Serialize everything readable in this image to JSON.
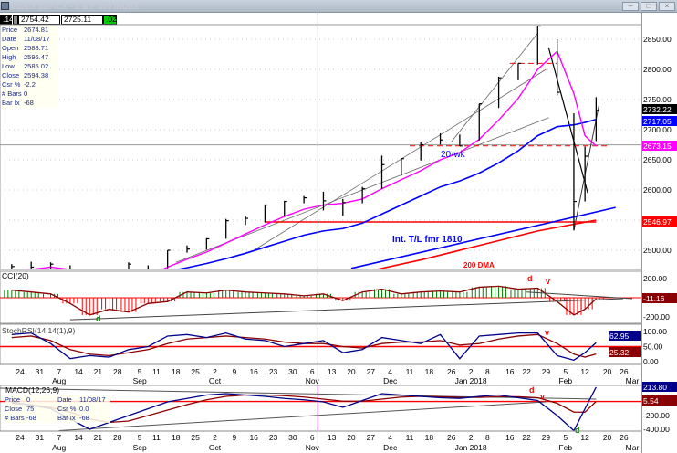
{
  "window": {
    "title": "INDEX $SPX.X - S & P 500 INDEX",
    "buttons": [
      "minimize",
      "maximize",
      "close"
    ]
  },
  "header_boxes": [
    ".14",
    "2754.42",
    "2725.11",
    ".02"
  ],
  "databox": [
    {
      "k": "Price",
      "v": "2674.81"
    },
    {
      "k": "Date",
      "v": "11/08/17"
    },
    {
      "k": "Open",
      "v": "2588.71"
    },
    {
      "k": "High",
      "v": "2596.47"
    },
    {
      "k": "Low",
      "v": "2585.02"
    },
    {
      "k": "Close",
      "v": "2594.38"
    },
    {
      "k": "Csr %",
      "v": "-2.2"
    },
    {
      "k": "# Bars",
      "v": "0"
    },
    {
      "k": "Bar Ix",
      "v": "-68"
    }
  ],
  "databox2": [
    {
      "k": "Price",
      "v": "0"
    },
    {
      "k": "Date",
      "v": "11/08/17"
    },
    {
      "k": "Close",
      "v": "75"
    },
    {
      "k": "Csr %",
      "v": "0.0"
    },
    {
      "k": "# Bars",
      "v": "-68"
    },
    {
      "k": "Bar Ix",
      "v": "-68"
    }
  ],
  "colors": {
    "price_bars": "#000000",
    "ma_pink": "#ff00ff",
    "ma_blue": "#0000ff",
    "dma200": "#ff0000",
    "hline": "#ff0000",
    "macd": "#00008b",
    "signal": "#8b0000",
    "cci_pos": "#008000",
    "cci_neg": "#ff0000"
  },
  "chart_data": [
    {
      "type": "bar",
      "title": "INDEX $SPX.X - S & P 500 INDEX",
      "yticks": [
        2500,
        2550,
        2600,
        2650,
        2700,
        2750,
        2800,
        2850
      ],
      "ytick_labels": [
        "2500.00",
        "",
        "2600.00",
        "2650.00",
        "2700.00",
        "2750.00",
        "2800.00",
        "2850.00"
      ],
      "ylim": [
        2468,
        2885
      ],
      "dates": [
        "2017-07-21",
        "2017-07-28",
        "2017-08-04",
        "2017-08-11",
        "2017-08-18",
        "2017-08-25",
        "2017-09-01",
        "2017-09-08",
        "2017-09-15",
        "2017-09-22",
        "2017-09-29",
        "2017-10-06",
        "2017-10-13",
        "2017-10-20",
        "2017-10-27",
        "2017-11-03",
        "2017-11-10",
        "2017-11-17",
        "2017-11-24",
        "2017-12-01",
        "2017-12-08",
        "2017-12-15",
        "2017-12-22",
        "2017-12-29",
        "2018-01-05",
        "2018-01-12",
        "2018-01-19",
        "2018-01-26",
        "2018-02-02",
        "2018-02-08",
        "2018-02-12",
        "2018-02-16"
      ],
      "high": [
        2477,
        2481,
        2480,
        2475,
        2450,
        2450,
        2480,
        2475,
        2500,
        2508,
        2520,
        2552,
        2557,
        2576,
        2582,
        2590,
        2597,
        2585,
        2605,
        2657,
        2652,
        2680,
        2694,
        2692,
        2743,
        2788,
        2810,
        2872,
        2850,
        2727,
        2672,
        2754
      ],
      "low": [
        2465,
        2465,
        2468,
        2437,
        2418,
        2425,
        2447,
        2446,
        2470,
        2496,
        2501,
        2519,
        2542,
        2546,
        2557,
        2578,
        2566,
        2557,
        2578,
        2602,
        2624,
        2649,
        2675,
        2673,
        2682,
        2736,
        2782,
        2808,
        2757,
        2533,
        2581,
        2681
      ],
      "close": [
        2473,
        2472,
        2477,
        2441,
        2425,
        2444,
        2477,
        2461,
        2500,
        2502,
        2519,
        2549,
        2553,
        2575,
        2581,
        2587,
        2582,
        2579,
        2602,
        2642,
        2652,
        2675,
        2683,
        2673,
        2743,
        2786,
        2810,
        2872,
        2762,
        2581,
        2656,
        2732
      ],
      "ma_pink": [
        2465,
        2468,
        2472,
        2468,
        2455,
        2448,
        2452,
        2458,
        2472,
        2485,
        2497,
        2512,
        2527,
        2542,
        2556,
        2568,
        2575,
        2578,
        2585,
        2602,
        2617,
        2632,
        2650,
        2662,
        2684,
        2716,
        2752,
        2800,
        2830,
        2760,
        2690,
        2673
      ],
      "ma_blue": [
        2440,
        2444,
        2447,
        2450,
        2451,
        2453,
        2456,
        2460,
        2465,
        2471,
        2478,
        2486,
        2495,
        2505,
        2515,
        2525,
        2532,
        2536,
        2545,
        2560,
        2575,
        2590,
        2605,
        2615,
        2628,
        2645,
        2665,
        2690,
        2705,
        2708,
        2712,
        2717
      ],
      "trendline": [
        {
          "date": "2017-11-20",
          "value": 2470
        },
        {
          "date": "2018-02-23",
          "value": 2571
        }
      ],
      "dma200": [
        {
          "date": "2017-11-24",
          "value": 2463
        },
        {
          "date": "2017-12-15",
          "value": 2484
        },
        {
          "date": "2018-01-05",
          "value": 2508
        },
        {
          "date": "2018-01-26",
          "value": 2532
        },
        {
          "date": "2018-02-16",
          "value": 2550
        }
      ],
      "hlines": [
        {
          "value": 2546.97,
          "from": "2017-10-20",
          "to": "2018-02-16"
        },
        {
          "value": 2673.15,
          "from": "2017-12-11",
          "to": "2018-02-20",
          "dashed": true
        },
        {
          "value": 2810,
          "from": "2018-01-16",
          "to": "2018-02-02",
          "dashed": true
        }
      ],
      "price_labels": [
        {
          "value": "2732.22",
          "bg": "#000000",
          "fg": "#ffffff",
          "level": 2732.22
        },
        {
          "value": "2717.05",
          "bg": "#0000ff",
          "fg": "#ffffff",
          "level": 2717.05
        },
        {
          "value": "2673.15",
          "bg": "#ff00ff",
          "fg": "#ffffff",
          "level": 2673.15
        },
        {
          "value": "2546.97",
          "bg": "#ff0000",
          "fg": "#ffffff",
          "level": 2546.97
        }
      ],
      "annotations": [
        {
          "text": "20-wk",
          "color": "#0000ff"
        },
        {
          "text": "Int. T/L fmr 1810",
          "color": "#0000ff"
        },
        {
          "text": "200 DMA",
          "color": "#ff0000"
        }
      ]
    },
    {
      "type": "bar",
      "title": "CCI(20)",
      "ylim": [
        -270,
        270
      ],
      "yticks": [
        200,
        -200
      ],
      "ytick_labels": [
        "200.00",
        "-200.00"
      ],
      "values": [
        80,
        60,
        40,
        -60,
        -180,
        -120,
        -150,
        -60,
        -40,
        60,
        50,
        80,
        60,
        50,
        40,
        20,
        40,
        -30,
        60,
        90,
        40,
        60,
        70,
        60,
        110,
        120,
        90,
        100,
        -40,
        -180,
        -120,
        -11.16
      ],
      "last_label": "-11.16",
      "annotations": [
        "d",
        "d",
        "v"
      ]
    },
    {
      "type": "line",
      "title": "StochRSI(14,14(1),9)",
      "ylim": [
        0,
        100
      ],
      "yticks": [
        100,
        50,
        0
      ],
      "ytick_labels": [
        "100.00",
        "50.00",
        "0.00"
      ],
      "series": [
        {
          "values": [
            90,
            95,
            60,
            10,
            20,
            15,
            40,
            50,
            85,
            90,
            80,
            95,
            75,
            70,
            50,
            60,
            70,
            30,
            40,
            80,
            70,
            60,
            90,
            10,
            85,
            90,
            95,
            95,
            20,
            5,
            30,
            62.95
          ]
        },
        {
          "values": [
            80,
            85,
            70,
            40,
            25,
            20,
            30,
            40,
            60,
            75,
            80,
            85,
            80,
            75,
            65,
            60,
            60,
            50,
            45,
            60,
            65,
            65,
            70,
            55,
            60,
            75,
            85,
            90,
            60,
            25,
            15,
            25.32
          ]
        }
      ],
      "last_labels": [
        "62.95",
        "25.32"
      ],
      "reference": 50,
      "annotations": [
        "v"
      ]
    },
    {
      "type": "line",
      "title": "MACD(12,26,9)",
      "ylim": [
        -430,
        240
      ],
      "yticks": [
        -200,
        -400
      ],
      "ytick_labels": [
        "-200.00",
        "-400.00"
      ],
      "series": [
        {
          "values": [
            0,
            -50,
            -100,
            -250,
            -400,
            -300,
            -200,
            -100,
            0,
            50,
            100,
            120,
            100,
            80,
            50,
            30,
            0,
            -80,
            20,
            120,
            100,
            80,
            60,
            50,
            80,
            100,
            60,
            20,
            -200,
            -420,
            -100,
            213.8
          ]
        },
        {
          "values": [
            -20,
            -40,
            -80,
            -150,
            -250,
            -300,
            -280,
            -200,
            -120,
            -40,
            30,
            80,
            100,
            100,
            90,
            70,
            40,
            10,
            10,
            40,
            70,
            80,
            75,
            65,
            65,
            75,
            75,
            60,
            -20,
            -150,
            -150,
            5.54
          ]
        }
      ],
      "last_labels": [
        "213.80",
        "5.54"
      ],
      "reference": 5.54,
      "annotations": [
        "d",
        "v",
        "d"
      ]
    }
  ],
  "xaxis": {
    "ticks": [
      [
        "2017-07-24",
        "24"
      ],
      [
        "2017-07-31",
        "31"
      ],
      [
        "2017-08-07",
        "7"
      ],
      [
        "2017-08-14",
        "14"
      ],
      [
        "2017-08-21",
        "21"
      ],
      [
        "2017-08-28",
        "28"
      ],
      [
        "2017-09-05",
        "5"
      ],
      [
        "2017-09-11",
        "11"
      ],
      [
        "2017-09-18",
        "18"
      ],
      [
        "2017-09-25",
        "25"
      ],
      [
        "2017-10-02",
        "2"
      ],
      [
        "2017-10-09",
        "9"
      ],
      [
        "2017-10-16",
        "16"
      ],
      [
        "2017-10-23",
        "23"
      ],
      [
        "2017-10-30",
        "30"
      ],
      [
        "2017-11-06",
        "6"
      ],
      [
        "2017-11-13",
        "13"
      ],
      [
        "2017-11-20",
        "20"
      ],
      [
        "2017-11-27",
        "27"
      ],
      [
        "2017-12-04",
        "4"
      ],
      [
        "2017-12-11",
        "11"
      ],
      [
        "2017-12-18",
        "18"
      ],
      [
        "2017-12-26",
        "26"
      ],
      [
        "2018-01-02",
        "2"
      ],
      [
        "2018-01-08",
        "8"
      ],
      [
        "2018-01-16",
        "16"
      ],
      [
        "2018-01-22",
        "22"
      ],
      [
        "2018-01-29",
        "29"
      ],
      [
        "2018-02-05",
        "5"
      ],
      [
        "2018-02-12",
        "12"
      ],
      [
        "2018-02-20",
        "20"
      ],
      [
        "2018-02-26",
        "26"
      ]
    ],
    "months": [
      [
        "2017-08-07",
        "Aug"
      ],
      [
        "2017-09-05",
        "Sep"
      ],
      [
        "2017-10-02",
        "Oct"
      ],
      [
        "2017-11-06",
        "Nov"
      ],
      [
        "2017-12-04",
        "Dec"
      ],
      [
        "2018-01-02",
        "Jan 2018"
      ],
      [
        "2018-02-05",
        "Feb"
      ],
      [
        "2018-03-01",
        "Mar"
      ]
    ]
  }
}
